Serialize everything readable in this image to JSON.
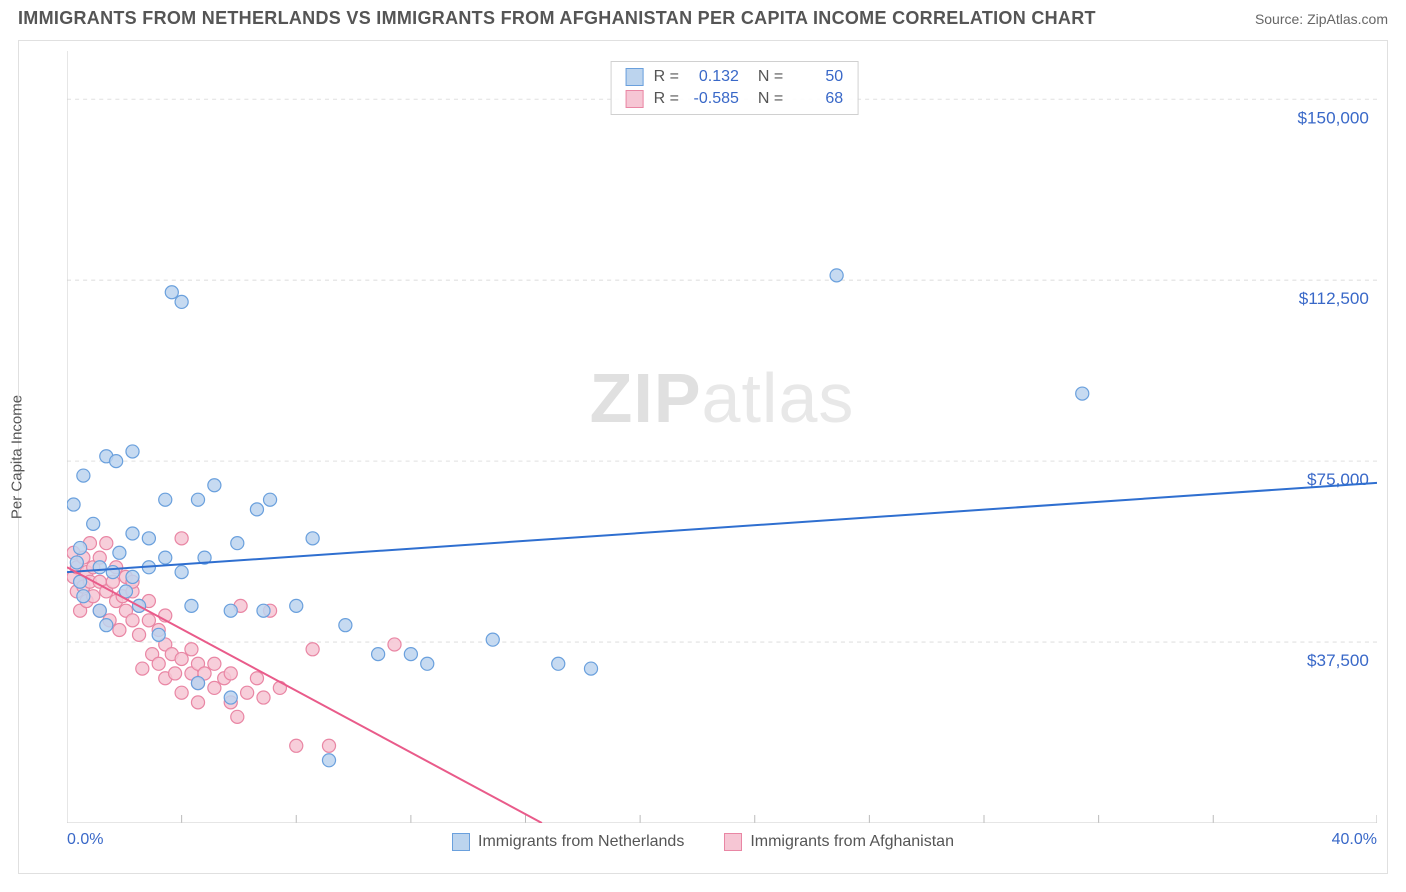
{
  "title": "IMMIGRANTS FROM NETHERLANDS VS IMMIGRANTS FROM AFGHANISTAN PER CAPITA INCOME CORRELATION CHART",
  "source": "Source: ZipAtlas.com",
  "watermark_bold": "ZIP",
  "watermark_light": "atlas",
  "ylabel": "Per Capita Income",
  "chart": {
    "type": "scatter",
    "background_color": "#ffffff",
    "grid_color": "#e0e0e0",
    "grid_dash": "4,4",
    "axis_color": "#cccccc",
    "label_color_blue": "#3968c8",
    "xlim": [
      0,
      40
    ],
    "ylim": [
      0,
      160000
    ],
    "x_tick_positions": [
      0,
      3.5,
      7,
      10.5,
      14,
      17.5,
      21,
      24.5,
      28,
      31.5,
      35,
      40
    ],
    "x_tick_labels_visible": {
      "0": "0.0%",
      "40": "40.0%"
    },
    "y_grid_positions": [
      37500,
      75000,
      112500,
      150000
    ],
    "y_grid_labels": [
      "$37,500",
      "$75,000",
      "$112,500",
      "$150,000"
    ],
    "marker_radius": 6.5,
    "marker_stroke_width": 1.2,
    "trend_line_width": 2,
    "series": [
      {
        "name": "Immigrants from Netherlands",
        "fill": "#bcd4ee",
        "stroke": "#6aa0dd",
        "line_color": "#2f6fd0",
        "R": "0.132",
        "N": "50",
        "trend": {
          "x1": 0,
          "y1": 52000,
          "x2": 40,
          "y2": 70500
        },
        "points": [
          [
            0.2,
            66000
          ],
          [
            0.3,
            54000
          ],
          [
            0.4,
            50000
          ],
          [
            0.4,
            57000
          ],
          [
            0.5,
            72000
          ],
          [
            0.5,
            47000
          ],
          [
            0.8,
            62000
          ],
          [
            1.0,
            53000
          ],
          [
            1.0,
            44000
          ],
          [
            1.2,
            76000
          ],
          [
            1.2,
            41000
          ],
          [
            1.4,
            52000
          ],
          [
            1.5,
            75000
          ],
          [
            1.6,
            56000
          ],
          [
            1.8,
            48000
          ],
          [
            2.0,
            60000
          ],
          [
            2.0,
            77000
          ],
          [
            2.0,
            51000
          ],
          [
            2.2,
            45000
          ],
          [
            2.5,
            53000
          ],
          [
            2.5,
            59000
          ],
          [
            2.8,
            39000
          ],
          [
            3.0,
            55000
          ],
          [
            3.0,
            67000
          ],
          [
            3.2,
            110000
          ],
          [
            3.5,
            108000
          ],
          [
            3.5,
            52000
          ],
          [
            3.8,
            45000
          ],
          [
            4.0,
            67000
          ],
          [
            4.0,
            29000
          ],
          [
            4.2,
            55000
          ],
          [
            4.5,
            70000
          ],
          [
            5.0,
            26000
          ],
          [
            5.0,
            44000
          ],
          [
            5.2,
            58000
          ],
          [
            5.8,
            65000
          ],
          [
            6.0,
            44000
          ],
          [
            6.2,
            67000
          ],
          [
            7.0,
            45000
          ],
          [
            7.5,
            59000
          ],
          [
            8.0,
            13000
          ],
          [
            8.5,
            41000
          ],
          [
            9.5,
            35000
          ],
          [
            10.5,
            35000
          ],
          [
            11.0,
            33000
          ],
          [
            13.0,
            38000
          ],
          [
            15.0,
            33000
          ],
          [
            16.0,
            32000
          ],
          [
            23.5,
            113500
          ],
          [
            31.0,
            89000
          ]
        ]
      },
      {
        "name": "Immigrants from Afghanistan",
        "fill": "#f6c6d4",
        "stroke": "#e986a4",
        "line_color": "#e95b8a",
        "R": "-0.585",
        "N": "68",
        "trend": {
          "x1": 0,
          "y1": 53000,
          "x2": 14.5,
          "y2": 0
        },
        "points": [
          [
            0.2,
            51000
          ],
          [
            0.2,
            56000
          ],
          [
            0.3,
            48000
          ],
          [
            0.3,
            53000
          ],
          [
            0.4,
            50000
          ],
          [
            0.4,
            44000
          ],
          [
            0.5,
            55000
          ],
          [
            0.5,
            49000
          ],
          [
            0.6,
            52000
          ],
          [
            0.6,
            46000
          ],
          [
            0.7,
            58000
          ],
          [
            0.7,
            50000
          ],
          [
            0.8,
            47000
          ],
          [
            0.8,
            53000
          ],
          [
            1.0,
            50000
          ],
          [
            1.0,
            44000
          ],
          [
            1.0,
            55000
          ],
          [
            1.2,
            48000
          ],
          [
            1.2,
            58000
          ],
          [
            1.3,
            42000
          ],
          [
            1.4,
            50000
          ],
          [
            1.5,
            46000
          ],
          [
            1.5,
            53000
          ],
          [
            1.6,
            40000
          ],
          [
            1.7,
            47000
          ],
          [
            1.8,
            44000
          ],
          [
            1.8,
            51000
          ],
          [
            2.0,
            42000
          ],
          [
            2.0,
            48000
          ],
          [
            2.0,
            50000
          ],
          [
            2.2,
            45000
          ],
          [
            2.2,
            39000
          ],
          [
            2.3,
            32000
          ],
          [
            2.5,
            42000
          ],
          [
            2.5,
            46000
          ],
          [
            2.6,
            35000
          ],
          [
            2.8,
            40000
          ],
          [
            2.8,
            33000
          ],
          [
            3.0,
            37000
          ],
          [
            3.0,
            43000
          ],
          [
            3.0,
            30000
          ],
          [
            3.2,
            35000
          ],
          [
            3.3,
            31000
          ],
          [
            3.5,
            34000
          ],
          [
            3.5,
            27000
          ],
          [
            3.5,
            59000
          ],
          [
            3.8,
            31000
          ],
          [
            3.8,
            36000
          ],
          [
            4.0,
            25000
          ],
          [
            4.0,
            33000
          ],
          [
            4.0,
            29000
          ],
          [
            4.2,
            31000
          ],
          [
            4.5,
            28000
          ],
          [
            4.5,
            33000
          ],
          [
            4.8,
            30000
          ],
          [
            5.0,
            25000
          ],
          [
            5.0,
            31000
          ],
          [
            5.2,
            22000
          ],
          [
            5.3,
            45000
          ],
          [
            5.5,
            27000
          ],
          [
            5.8,
            30000
          ],
          [
            6.0,
            26000
          ],
          [
            6.2,
            44000
          ],
          [
            6.5,
            28000
          ],
          [
            7.0,
            16000
          ],
          [
            7.5,
            36000
          ],
          [
            8.0,
            16000
          ],
          [
            10.0,
            37000
          ]
        ]
      }
    ],
    "bottom_legend": [
      {
        "label": "Immigrants from Netherlands",
        "fill": "#bcd4ee",
        "stroke": "#6aa0dd"
      },
      {
        "label": "Immigrants from Afghanistan",
        "fill": "#f6c6d4",
        "stroke": "#e986a4"
      }
    ]
  }
}
